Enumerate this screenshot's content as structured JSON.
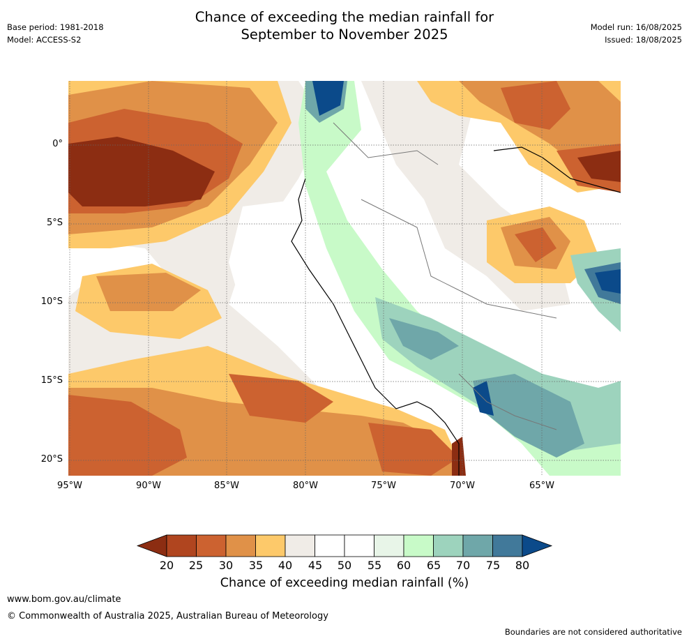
{
  "title_lines": [
    "Chance of exceeding the median rainfall for",
    "September to November 2025"
  ],
  "meta_left": [
    "Base period: 1981-2018",
    "Model: ACCESS-S2"
  ],
  "meta_right": [
    "Model run: 16/08/2025",
    "Issued: 18/08/2025"
  ],
  "axes": {
    "lat_labels": [
      "0°",
      "5°S",
      "10°S",
      "15°S",
      "20°S"
    ],
    "lon_labels": [
      "95°W",
      "90°W",
      "85°W",
      "80°W",
      "75°W",
      "70°W",
      "65°W"
    ]
  },
  "colorbar": {
    "ticks": [
      "20",
      "25",
      "30",
      "35",
      "40",
      "45",
      "50",
      "55",
      "60",
      "65",
      "70",
      "75",
      "80"
    ],
    "colors": [
      "#8c2d12",
      "#b0451f",
      "#cc6230",
      "#e09148",
      "#fdc96a",
      "#f0ece7",
      "#ffffff",
      "#ffffff",
      "#e8f5e8",
      "#c8fac8",
      "#9dd3bd",
      "#6fa7a9",
      "#41799a",
      "#0b4a8a"
    ],
    "title": "Chance of exceeding median rainfall (%)"
  },
  "footer": {
    "url": "www.bom.gov.au/climate",
    "copyright": "© Commonwealth of Australia 2025, Australian Bureau of Meteorology",
    "note": "Boundaries are not considered authoritative"
  }
}
